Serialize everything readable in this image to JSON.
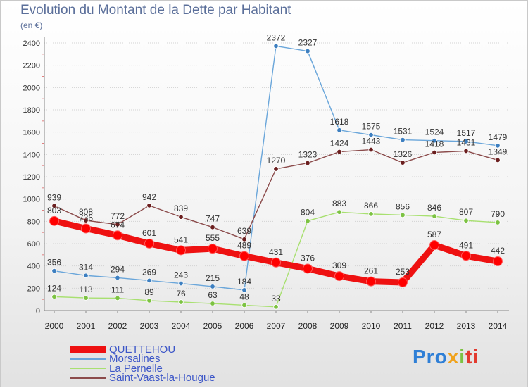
{
  "title": "Evolution du Montant de la Dette par Habitant",
  "unit_label": "(en €)",
  "logo": {
    "text": "Proxiti",
    "parts": [
      "Pro",
      "x",
      "i",
      "ti"
    ],
    "colors": [
      "#2f7fd6",
      "#f0a21c",
      "#7cc242",
      "#e23a2e"
    ]
  },
  "chart_data": {
    "type": "line",
    "title": "Evolution du Montant de la Dette par Habitant",
    "ylabel": "(en €)",
    "xlabel": "",
    "x": [
      "2000",
      "2001",
      "2002",
      "2003",
      "2004",
      "2005",
      "2006",
      "2007",
      "2008",
      "2009",
      "2010",
      "2011",
      "2012",
      "2013",
      "2014"
    ],
    "ylim": [
      0,
      2400
    ],
    "yticks": [
      0,
      200,
      400,
      600,
      800,
      1000,
      1200,
      1400,
      1600,
      1800,
      2000,
      2200,
      2400
    ],
    "grid": true,
    "legend": "bottom-left",
    "series": [
      {
        "name": "QUETTEHOU",
        "color": "#ee1111",
        "marker": "#ff0000",
        "emphasis": true,
        "values": [
          803,
          736,
          674,
          601,
          541,
          555,
          489,
          431,
          376,
          309,
          261,
          253,
          587,
          491,
          442
        ]
      },
      {
        "name": "Morsalines",
        "color": "#6aa6da",
        "marker": "#3d7fc0",
        "emphasis": false,
        "values": [
          356,
          314,
          294,
          269,
          243,
          215,
          184,
          2372,
          2327,
          1618,
          1575,
          1531,
          1524,
          1517,
          1479
        ]
      },
      {
        "name": "La Pernelle",
        "color": "#a8e070",
        "marker": "#7cc242",
        "emphasis": false,
        "values": [
          124,
          113,
          111,
          89,
          76,
          63,
          48,
          33,
          804,
          883,
          866,
          856,
          846,
          807,
          790
        ]
      },
      {
        "name": "Saint-Vaast-la-Hougue",
        "color": "#8b4b4b",
        "marker": "#6b1f1f",
        "emphasis": false,
        "values": [
          939,
          808,
          772,
          942,
          839,
          747,
          639,
          1270,
          1323,
          1424,
          1443,
          1326,
          1418,
          1431,
          1349
        ]
      }
    ]
  }
}
